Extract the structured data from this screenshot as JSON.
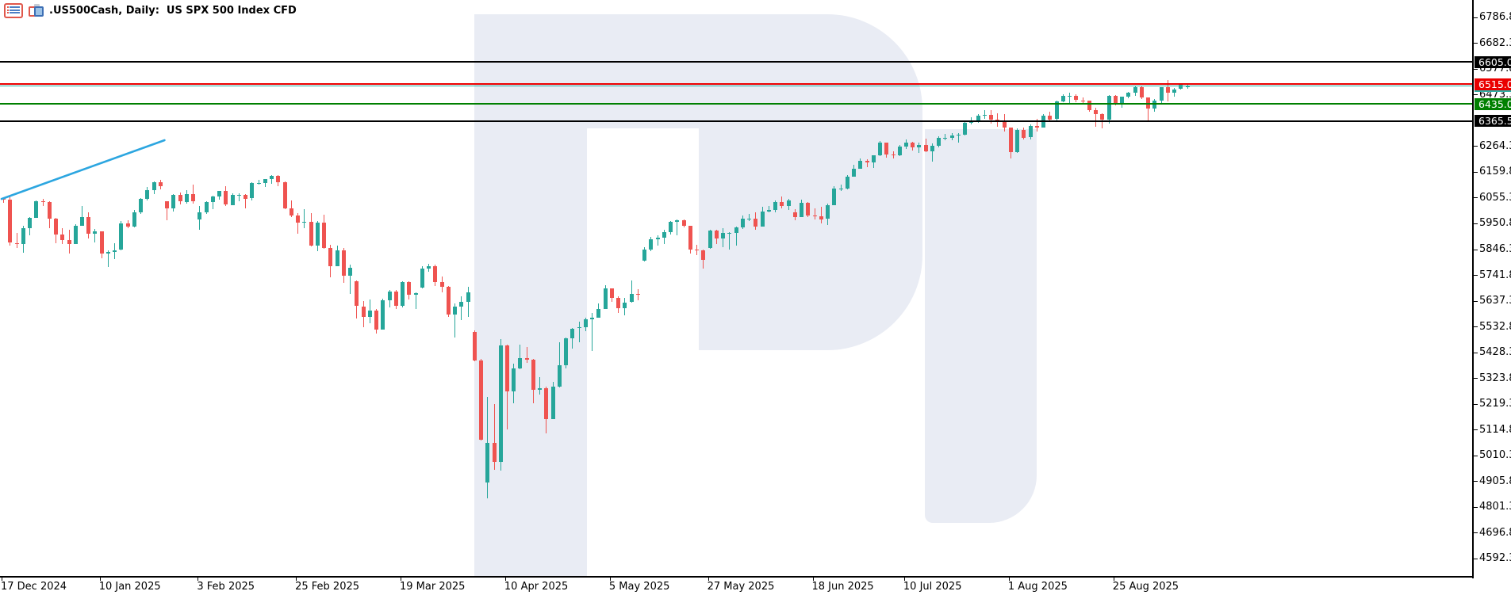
{
  "header": {
    "title": ".US500Cash, Daily:",
    "description": "US SPX 500 Index CFD",
    "icons": [
      "quotes-list-icon",
      "chart-windows-icon"
    ]
  },
  "colors": {
    "background": "#ffffff",
    "watermark": "#e9ecf4",
    "bull": "#26a69a",
    "bear": "#ef5350",
    "axis": "#000000",
    "level_black": "#000000",
    "level_red": "#ea0000",
    "level_green": "#008000",
    "bid_line": "#2bb1a6",
    "trendline_blue": "#2ca6e0",
    "label_text": "#ffffff"
  },
  "chart_data": {
    "type": "candlestick",
    "symbol": ".US500Cash",
    "timeframe": "Daily",
    "title": "US SPX 500 Index CFD",
    "grid": false,
    "legend_position": "none",
    "y_axis_side": "right",
    "ylim": [
      4518,
      6857
    ],
    "y_tick_step": 104.5,
    "y_ticks": [
      6786.8,
      6682.3,
      6577.8,
      6473.3,
      6264.3,
      6159.8,
      6055.3,
      5950.8,
      5846.3,
      5741.8,
      5637.3,
      5532.8,
      5428.3,
      5323.8,
      5219.3,
      5114.8,
      5010.3,
      4905.8,
      4801.3,
      4696.8,
      4592.3
    ],
    "x_tick_labels": [
      {
        "label": "17 Dec 2024",
        "bar": 0
      },
      {
        "label": "10 Jan 2025",
        "bar": 15
      },
      {
        "label": "3 Feb 2025",
        "bar": 30
      },
      {
        "label": "25 Feb 2025",
        "bar": 45
      },
      {
        "label": "19 Mar 2025",
        "bar": 61
      },
      {
        "label": "10 Apr 2025",
        "bar": 77
      },
      {
        "label": "5 May 2025",
        "bar": 93
      },
      {
        "label": "27 May 2025",
        "bar": 108
      },
      {
        "label": "18 Jun 2025",
        "bar": 124
      },
      {
        "label": "10 Jul 2025",
        "bar": 138
      },
      {
        "label": "1 Aug 2025",
        "bar": 154
      },
      {
        "label": "25 Aug 2025",
        "bar": 170
      }
    ],
    "levels": [
      {
        "price": 6605.0,
        "label": "6605.0",
        "color": "#000000"
      },
      {
        "price": 6515.0,
        "label": "6515.0",
        "color": "#ea0000"
      },
      {
        "price": 6435.0,
        "label": "6435.0",
        "color": "#008000"
      },
      {
        "price": 6365.5,
        "label": "6365.5",
        "color": "#000000"
      }
    ],
    "bid_price": 6508.0,
    "trendline": {
      "bar_start": -0.3,
      "price_start": 6050,
      "bar_end": 24.6,
      "price_end": 6288,
      "color": "#2ca6e0"
    },
    "dates": [
      "2024-12-17",
      "2024-12-18",
      "2024-12-19",
      "2024-12-20",
      "2024-12-23",
      "2024-12-24",
      "2024-12-26",
      "2024-12-27",
      "2024-12-30",
      "2024-12-31",
      "2025-01-02",
      "2025-01-03",
      "2025-01-06",
      "2025-01-07",
      "2025-01-08",
      "2025-01-10",
      "2025-01-13",
      "2025-01-14",
      "2025-01-15",
      "2025-01-16",
      "2025-01-17",
      "2025-01-21",
      "2025-01-22",
      "2025-01-23",
      "2025-01-24",
      "2025-01-27",
      "2025-01-28",
      "2025-01-29",
      "2025-01-30",
      "2025-01-31",
      "2025-02-03",
      "2025-02-04",
      "2025-02-05",
      "2025-02-06",
      "2025-02-07",
      "2025-02-10",
      "2025-02-11",
      "2025-02-12",
      "2025-02-13",
      "2025-02-14",
      "2025-02-18",
      "2025-02-19",
      "2025-02-20",
      "2025-02-21",
      "2025-02-24",
      "2025-02-25",
      "2025-02-26",
      "2025-02-27",
      "2025-02-28",
      "2025-03-03",
      "2025-03-04",
      "2025-03-05",
      "2025-03-06",
      "2025-03-07",
      "2025-03-10",
      "2025-03-11",
      "2025-03-12",
      "2025-03-13",
      "2025-03-14",
      "2025-03-17",
      "2025-03-18",
      "2025-03-19",
      "2025-03-20",
      "2025-03-21",
      "2025-03-24",
      "2025-03-25",
      "2025-03-26",
      "2025-03-27",
      "2025-03-28",
      "2025-03-31",
      "2025-04-01",
      "2025-04-02",
      "2025-04-03",
      "2025-04-04",
      "2025-04-07",
      "2025-04-08",
      "2025-04-09",
      "2025-04-10",
      "2025-04-11",
      "2025-04-14",
      "2025-04-15",
      "2025-04-16",
      "2025-04-17",
      "2025-04-21",
      "2025-04-22",
      "2025-04-23",
      "2025-04-24",
      "2025-04-25",
      "2025-04-28",
      "2025-04-29",
      "2025-04-30",
      "2025-05-01",
      "2025-05-02",
      "2025-05-05",
      "2025-05-06",
      "2025-05-07",
      "2025-05-08",
      "2025-05-09",
      "2025-05-12",
      "2025-05-13",
      "2025-05-14",
      "2025-05-15",
      "2025-05-16",
      "2025-05-19",
      "2025-05-20",
      "2025-05-21",
      "2025-05-22",
      "2025-05-23",
      "2025-05-27",
      "2025-05-28",
      "2025-05-29",
      "2025-05-30",
      "2025-06-02",
      "2025-06-03",
      "2025-06-04",
      "2025-06-05",
      "2025-06-06",
      "2025-06-09",
      "2025-06-10",
      "2025-06-11",
      "2025-06-12",
      "2025-06-13",
      "2025-06-16",
      "2025-06-17",
      "2025-06-18",
      "2025-06-20",
      "2025-06-23",
      "2025-06-24",
      "2025-06-25",
      "2025-06-26",
      "2025-06-27",
      "2025-06-30",
      "2025-07-01",
      "2025-07-02",
      "2025-07-03",
      "2025-07-07",
      "2025-07-08",
      "2025-07-09",
      "2025-07-10",
      "2025-07-11",
      "2025-07-14",
      "2025-07-15",
      "2025-07-16",
      "2025-07-17",
      "2025-07-18",
      "2025-07-21",
      "2025-07-22",
      "2025-07-23",
      "2025-07-24",
      "2025-07-25",
      "2025-07-28",
      "2025-07-29",
      "2025-07-30",
      "2025-07-31",
      "2025-08-01",
      "2025-08-04",
      "2025-08-05",
      "2025-08-06",
      "2025-08-07",
      "2025-08-08",
      "2025-08-11",
      "2025-08-12",
      "2025-08-13",
      "2025-08-14",
      "2025-08-15",
      "2025-08-18",
      "2025-08-19",
      "2025-08-20",
      "2025-08-21",
      "2025-08-22",
      "2025-08-25",
      "2025-08-26",
      "2025-08-27",
      "2025-08-28",
      "2025-08-29",
      "2025-09-02",
      "2025-09-03",
      "2025-09-04",
      "2025-09-05",
      "2025-09-08",
      "2025-09-09",
      "2025-09-10"
    ],
    "ohlc": [
      [
        6052,
        6058,
        6035,
        6046
      ],
      [
        6046,
        6060,
        5860,
        5872
      ],
      [
        5872,
        5912,
        5850,
        5867
      ],
      [
        5867,
        5940,
        5832,
        5930
      ],
      [
        5930,
        5978,
        5902,
        5974
      ],
      [
        5974,
        6043,
        5972,
        6040
      ],
      [
        6040,
        6050,
        6020,
        6038
      ],
      [
        6038,
        6042,
        5932,
        5971
      ],
      [
        5971,
        5973,
        5869,
        5907
      ],
      [
        5907,
        5930,
        5868,
        5882
      ],
      [
        5882,
        5924,
        5829,
        5868
      ],
      [
        5868,
        5949,
        5866,
        5942
      ],
      [
        5942,
        6021,
        5940,
        5975
      ],
      [
        5975,
        5997,
        5888,
        5909
      ],
      [
        5909,
        5928,
        5874,
        5918
      ],
      [
        5918,
        5920,
        5810,
        5827
      ],
      [
        5827,
        5842,
        5773,
        5836
      ],
      [
        5836,
        5871,
        5805,
        5843
      ],
      [
        5843,
        5960,
        5841,
        5950
      ],
      [
        5950,
        5964,
        5930,
        5937
      ],
      [
        5937,
        6004,
        5935,
        5996
      ],
      [
        5996,
        6054,
        5990,
        6049
      ],
      [
        6049,
        6100,
        6045,
        6086
      ],
      [
        6086,
        6121,
        6069,
        6119
      ],
      [
        6119,
        6128,
        6088,
        6101
      ],
      [
        6040,
        6042,
        5962,
        6012
      ],
      [
        6012,
        6070,
        5997,
        6067
      ],
      [
        6067,
        6075,
        6028,
        6039
      ],
      [
        6039,
        6086,
        6031,
        6071
      ],
      [
        6071,
        6108,
        6030,
        6041
      ],
      [
        5965,
        6022,
        5924,
        5995
      ],
      [
        5995,
        6042,
        5990,
        6038
      ],
      [
        6038,
        6063,
        6008,
        6061
      ],
      [
        6061,
        6084,
        6046,
        6083
      ],
      [
        6083,
        6101,
        6020,
        6026
      ],
      [
        6026,
        6073,
        6024,
        6066
      ],
      [
        6066,
        6074,
        6042,
        6068
      ],
      [
        6068,
        6070,
        6010,
        6052
      ],
      [
        6052,
        6117,
        6043,
        6115
      ],
      [
        6115,
        6127,
        6107,
        6115
      ],
      [
        6115,
        6131,
        6099,
        6130
      ],
      [
        6130,
        6147,
        6111,
        6144
      ],
      [
        6144,
        6146,
        6100,
        6118
      ],
      [
        6118,
        6120,
        6008,
        6013
      ],
      [
        6013,
        6043,
        5977,
        5983
      ],
      [
        5983,
        5992,
        5908,
        5955
      ],
      [
        5955,
        6010,
        5932,
        5956
      ],
      [
        5956,
        5993,
        5858,
        5861
      ],
      [
        5861,
        5959,
        5837,
        5955
      ],
      [
        5955,
        5986,
        5848,
        5850
      ],
      [
        5850,
        5865,
        5732,
        5778
      ],
      [
        5778,
        5860,
        5776,
        5843
      ],
      [
        5843,
        5850,
        5711,
        5738
      ],
      [
        5738,
        5783,
        5666,
        5770
      ],
      [
        5715,
        5718,
        5564,
        5615
      ],
      [
        5615,
        5636,
        5528,
        5572
      ],
      [
        5572,
        5642,
        5546,
        5599
      ],
      [
        5599,
        5605,
        5504,
        5521
      ],
      [
        5521,
        5645,
        5519,
        5639
      ],
      [
        5639,
        5681,
        5611,
        5675
      ],
      [
        5675,
        5680,
        5602,
        5615
      ],
      [
        5615,
        5715,
        5610,
        5712
      ],
      [
        5712,
        5717,
        5642,
        5663
      ],
      [
        5663,
        5672,
        5603,
        5668
      ],
      [
        5690,
        5778,
        5688,
        5768
      ],
      [
        5768,
        5787,
        5754,
        5777
      ],
      [
        5777,
        5784,
        5697,
        5712
      ],
      [
        5712,
        5734,
        5671,
        5693
      ],
      [
        5693,
        5697,
        5572,
        5581
      ],
      [
        5581,
        5627,
        5488,
        5612
      ],
      [
        5612,
        5656,
        5559,
        5633
      ],
      [
        5633,
        5695,
        5571,
        5671
      ],
      [
        5510,
        5516,
        5390,
        5396
      ],
      [
        5396,
        5400,
        5069,
        5074
      ],
      [
        4900,
        5246,
        4835,
        5062
      ],
      [
        5062,
        5217,
        4950,
        4983
      ],
      [
        4983,
        5481,
        4948,
        5457
      ],
      [
        5457,
        5460,
        5115,
        5268
      ],
      [
        5268,
        5381,
        5220,
        5363
      ],
      [
        5363,
        5459,
        5358,
        5406
      ],
      [
        5406,
        5450,
        5386,
        5397
      ],
      [
        5397,
        5400,
        5220,
        5276
      ],
      [
        5276,
        5328,
        5255,
        5283
      ],
      [
        5283,
        5289,
        5101,
        5158
      ],
      [
        5158,
        5309,
        5156,
        5288
      ],
      [
        5288,
        5469,
        5286,
        5376
      ],
      [
        5376,
        5487,
        5362,
        5485
      ],
      [
        5485,
        5528,
        5443,
        5525
      ],
      [
        5525,
        5553,
        5468,
        5529
      ],
      [
        5529,
        5569,
        5513,
        5561
      ],
      [
        5561,
        5588,
        5433,
        5569
      ],
      [
        5569,
        5626,
        5567,
        5604
      ],
      [
        5604,
        5701,
        5602,
        5687
      ],
      [
        5687,
        5688,
        5634,
        5650
      ],
      [
        5650,
        5654,
        5586,
        5607
      ],
      [
        5607,
        5650,
        5578,
        5631
      ],
      [
        5631,
        5720,
        5629,
        5664
      ],
      [
        5664,
        5684,
        5639,
        5660
      ],
      [
        5800,
        5856,
        5798,
        5844
      ],
      [
        5844,
        5897,
        5838,
        5887
      ],
      [
        5887,
        5901,
        5861,
        5893
      ],
      [
        5893,
        5924,
        5866,
        5916
      ],
      [
        5916,
        5959,
        5906,
        5958
      ],
      [
        5958,
        5968,
        5903,
        5963
      ],
      [
        5963,
        5966,
        5935,
        5940
      ],
      [
        5940,
        5942,
        5830,
        5845
      ],
      [
        5845,
        5864,
        5821,
        5842
      ],
      [
        5842,
        5845,
        5768,
        5803
      ],
      [
        5850,
        5925,
        5848,
        5922
      ],
      [
        5922,
        5925,
        5868,
        5889
      ],
      [
        5889,
        5930,
        5855,
        5912
      ],
      [
        5912,
        5917,
        5846,
        5912
      ],
      [
        5912,
        5938,
        5861,
        5936
      ],
      [
        5936,
        5982,
        5928,
        5970
      ],
      [
        5970,
        5990,
        5959,
        5971
      ],
      [
        5971,
        5997,
        5925,
        5939
      ],
      [
        5939,
        6017,
        5937,
        6000
      ],
      [
        6000,
        6022,
        5995,
        6006
      ],
      [
        6006,
        6043,
        5996,
        6039
      ],
      [
        6039,
        6059,
        6013,
        6022
      ],
      [
        6022,
        6049,
        6004,
        6045
      ],
      [
        5995,
        6010,
        5963,
        5977
      ],
      [
        5977,
        6047,
        5975,
        6033
      ],
      [
        6033,
        6037,
        5976,
        5983
      ],
      [
        5983,
        6013,
        5966,
        5981
      ],
      [
        5981,
        6018,
        5952,
        5968
      ],
      [
        5968,
        6031,
        5943,
        6025
      ],
      [
        6025,
        6101,
        6023,
        6092
      ],
      [
        6092,
        6108,
        6081,
        6092
      ],
      [
        6092,
        6146,
        6090,
        6141
      ],
      [
        6141,
        6188,
        6139,
        6173
      ],
      [
        6173,
        6215,
        6171,
        6205
      ],
      [
        6205,
        6211,
        6178,
        6198
      ],
      [
        6198,
        6228,
        6177,
        6227
      ],
      [
        6227,
        6284,
        6225,
        6279
      ],
      [
        6279,
        6280,
        6218,
        6230
      ],
      [
        6230,
        6242,
        6214,
        6226
      ],
      [
        6226,
        6269,
        6223,
        6263
      ],
      [
        6263,
        6290,
        6251,
        6280
      ],
      [
        6280,
        6282,
        6245,
        6260
      ],
      [
        6260,
        6277,
        6236,
        6269
      ],
      [
        6269,
        6293,
        6241,
        6244
      ],
      [
        6244,
        6276,
        6202,
        6264
      ],
      [
        6264,
        6304,
        6258,
        6297
      ],
      [
        6297,
        6315,
        6287,
        6297
      ],
      [
        6297,
        6318,
        6289,
        6306
      ],
      [
        6306,
        6318,
        6278,
        6310
      ],
      [
        6310,
        6368,
        6308,
        6359
      ],
      [
        6359,
        6381,
        6352,
        6363
      ],
      [
        6363,
        6395,
        6360,
        6389
      ],
      [
        6389,
        6409,
        6376,
        6390
      ],
      [
        6390,
        6410,
        6355,
        6371
      ],
      [
        6371,
        6396,
        6343,
        6363
      ],
      [
        6363,
        6394,
        6322,
        6339
      ],
      [
        6339,
        6340,
        6213,
        6238
      ],
      [
        6238,
        6337,
        6236,
        6330
      ],
      [
        6330,
        6340,
        6291,
        6299
      ],
      [
        6299,
        6352,
        6290,
        6345
      ],
      [
        6345,
        6376,
        6323,
        6340
      ],
      [
        6340,
        6395,
        6338,
        6389
      ],
      [
        6389,
        6404,
        6365,
        6373
      ],
      [
        6373,
        6450,
        6369,
        6446
      ],
      [
        6446,
        6473,
        6441,
        6467
      ],
      [
        6467,
        6481,
        6439,
        6469
      ],
      [
        6469,
        6475,
        6442,
        6450
      ],
      [
        6450,
        6461,
        6432,
        6449
      ],
      [
        6449,
        6450,
        6402,
        6411
      ],
      [
        6411,
        6420,
        6344,
        6395
      ],
      [
        6395,
        6397,
        6336,
        6370
      ],
      [
        6370,
        6471,
        6355,
        6467
      ],
      [
        6467,
        6471,
        6428,
        6439
      ],
      [
        6439,
        6466,
        6420,
        6466
      ],
      [
        6466,
        6485,
        6457,
        6482
      ],
      [
        6482,
        6508,
        6467,
        6502
      ],
      [
        6502,
        6509,
        6455,
        6460
      ],
      [
        6460,
        6461,
        6361,
        6415
      ],
      [
        6415,
        6454,
        6402,
        6448
      ],
      [
        6448,
        6503,
        6434,
        6502
      ],
      [
        6502,
        6533,
        6444,
        6481
      ],
      [
        6481,
        6499,
        6465,
        6495
      ],
      [
        6495,
        6519,
        6493,
        6512
      ],
      [
        6506,
        6516,
        6498,
        6508
      ]
    ]
  }
}
